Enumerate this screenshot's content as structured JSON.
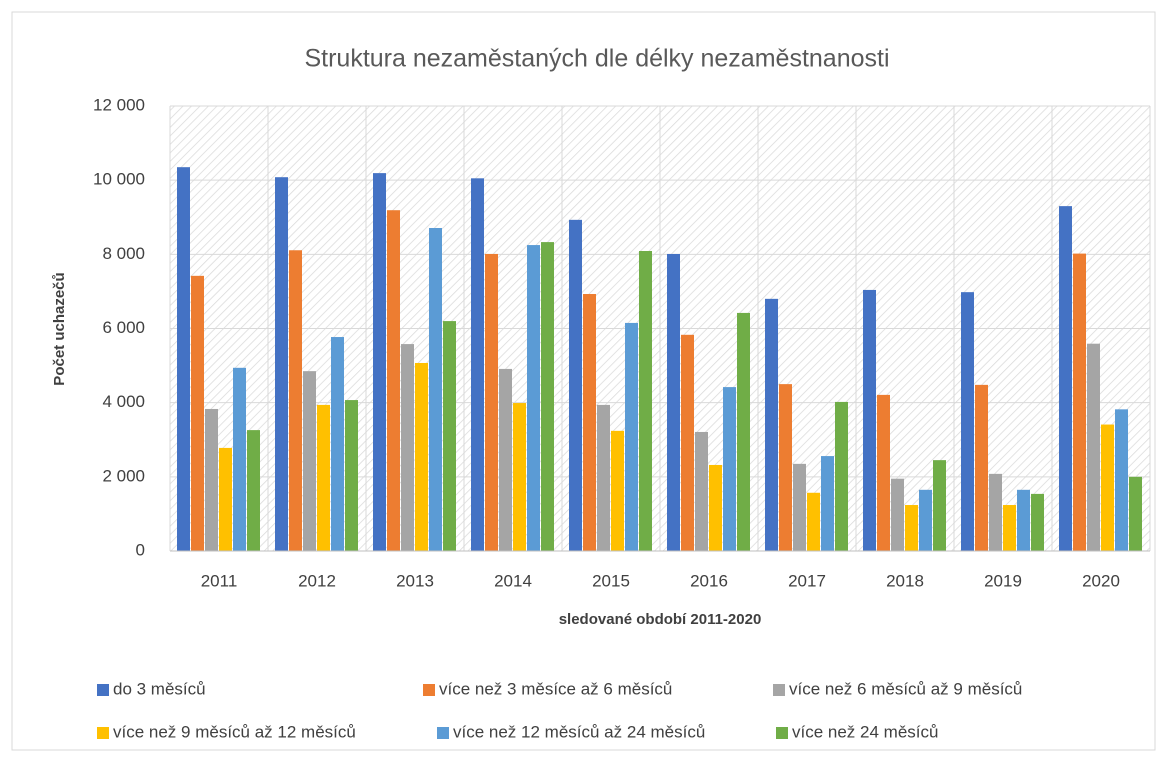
{
  "chart_data": {
    "type": "bar",
    "title": "Struktura nezaměstaných dle délky nezaměstnanosti",
    "x_label": "sledované období 2011-2020",
    "y_label": "Počet uchazečů",
    "categories": [
      "2011",
      "2012",
      "2013",
      "2014",
      "2015",
      "2016",
      "2017",
      "2018",
      "2019",
      "2020"
    ],
    "series": [
      {
        "name": "do 3 měsíců",
        "color": "#4472c4",
        "values": [
          10350,
          10080,
          10190,
          10050,
          8930,
          8010,
          6800,
          7040,
          6980,
          9300
        ]
      },
      {
        "name": "více než 3 měsíce až 6 měsíců",
        "color": "#ed7d31",
        "values": [
          7420,
          8110,
          9190,
          8010,
          6930,
          5830,
          4500,
          4210,
          4480,
          8020
        ]
      },
      {
        "name": "více než 6 měsíců až 9 měsíců",
        "color": "#a5a5a5",
        "values": [
          3830,
          4850,
          5580,
          4910,
          3940,
          3210,
          2350,
          1950,
          2080,
          5590
        ]
      },
      {
        "name": "více než 9 měsíců až 12 měsíců",
        "color": "#ffc000",
        "values": [
          2780,
          3940,
          5070,
          3990,
          3240,
          2320,
          1570,
          1240,
          1240,
          3410
        ]
      },
      {
        "name": "více než 12 měsíců až 24 měsíců",
        "color": "#5b9bd5",
        "values": [
          4940,
          5770,
          8710,
          8250,
          6150,
          4420,
          2560,
          1650,
          1650,
          3820
        ]
      },
      {
        "name": "více než 24 měsíců",
        "color": "#70ad47",
        "values": [
          3260,
          4070,
          6200,
          8330,
          8090,
          6420,
          4020,
          2450,
          1540,
          2000
        ]
      }
    ],
    "ylim": [
      0,
      12000
    ],
    "yticks": [
      0,
      {
        "value": 2000,
        "label": "2 000"
      },
      {
        "value": 4000,
        "label": "4 000"
      },
      {
        "value": 6000,
        "label": "6 000"
      },
      {
        "value": 8000,
        "label": "8 000"
      },
      {
        "value": 10000,
        "label": "10 000"
      },
      {
        "value": 12000,
        "label": "12 000"
      }
    ],
    "grid": true,
    "legend": "bottom"
  }
}
